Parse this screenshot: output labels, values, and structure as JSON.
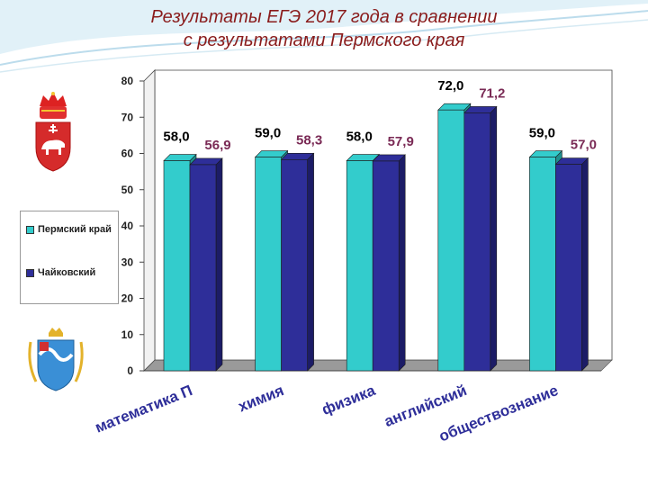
{
  "title": {
    "line1": "Результаты ЕГЭ 2017 года в сравнении",
    "line2": "с результатами Пермского края"
  },
  "colors": {
    "perm": "#33cccc",
    "chaikovsky": "#2e2e99",
    "value_label_perm": "#000000",
    "value_label_chaikovsky": "#7a2a55",
    "title": "#8a1c1c"
  },
  "emblems": {
    "top": "perm-krai-coat-of-arms-icon",
    "bottom": "chaikovsky-coat-of-arms-icon"
  },
  "chart_data": {
    "type": "bar",
    "categories": [
      "математика П",
      "химия",
      "физика",
      "английский",
      "обществознание"
    ],
    "series": [
      {
        "name": "Пермский край",
        "values": [
          58.0,
          59.0,
          58.0,
          72.0,
          59.0
        ],
        "labels": [
          "58,0",
          "59,0",
          "58,0",
          "72,0",
          "59,0"
        ],
        "color": "#33cccc"
      },
      {
        "name": "Чайковский",
        "values": [
          56.9,
          58.3,
          57.9,
          71.2,
          57.0
        ],
        "labels": [
          "56,9",
          "58,3",
          "57,9",
          "71,2",
          "57,0"
        ],
        "color": "#2e2e99"
      }
    ],
    "y_ticks": [
      "0",
      "10",
      "20",
      "30",
      "40",
      "50",
      "60",
      "70",
      "80"
    ],
    "ylim": [
      0,
      80
    ],
    "grid": false,
    "three_d": true,
    "legend_position": "left",
    "title": "",
    "xlabel": "",
    "ylabel": ""
  }
}
